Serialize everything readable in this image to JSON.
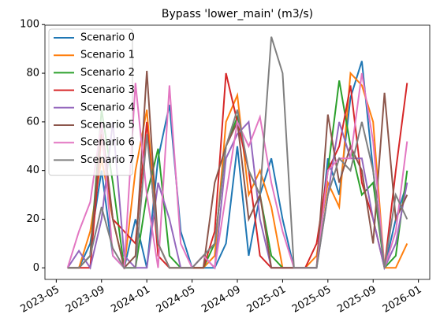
{
  "chart_data": {
    "type": "line",
    "title": "Bypass 'lower_main' (m3/s)",
    "x": [
      "2023-06",
      "2023-07",
      "2023-08",
      "2023-09",
      "2023-10",
      "2023-11",
      "2023-12",
      "2024-01",
      "2024-02",
      "2024-03",
      "2024-04",
      "2024-05",
      "2024-06",
      "2024-07",
      "2024-08",
      "2024-09",
      "2024-10",
      "2024-11",
      "2024-12",
      "2025-01",
      "2025-02",
      "2025-03",
      "2025-04",
      "2025-05",
      "2025-06",
      "2025-07",
      "2025-08",
      "2025-09",
      "2025-10",
      "2025-11",
      "2025-12"
    ],
    "xlim": [
      "2023-04",
      "2026-02"
    ],
    "xticks": [
      "2023-05",
      "2023-09",
      "2024-01",
      "2024-05",
      "2024-09",
      "2025-01",
      "2025-05",
      "2025-09",
      "2026-01"
    ],
    "ylim": [
      -4.75,
      99.75
    ],
    "yticks": [
      0,
      20,
      40,
      60,
      80,
      100
    ],
    "legend": "upper left",
    "series": [
      {
        "name": "Scenario 0",
        "color": "#1f77b4",
        "values": [
          0,
          0,
          10,
          40,
          5,
          0,
          20,
          0,
          45,
          67,
          15,
          0,
          0,
          0,
          10,
          50,
          5,
          30,
          45,
          20,
          0,
          0,
          0,
          45,
          30,
          70,
          85,
          40,
          0,
          20,
          35
        ]
      },
      {
        "name": "Scenario 1",
        "color": "#ff7f0e",
        "values": [
          0,
          0,
          15,
          45,
          20,
          0,
          40,
          65,
          10,
          0,
          0,
          0,
          0,
          5,
          60,
          71,
          30,
          40,
          25,
          0,
          0,
          0,
          5,
          35,
          25,
          80,
          75,
          60,
          0,
          0,
          10
        ]
      },
      {
        "name": "Scenario 2",
        "color": "#2ca02c",
        "values": [
          0,
          0,
          5,
          65,
          35,
          0,
          0,
          30,
          49,
          5,
          0,
          0,
          0,
          10,
          50,
          62,
          40,
          30,
          5,
          0,
          0,
          0,
          0,
          40,
          77,
          50,
          30,
          35,
          0,
          5,
          40
        ]
      },
      {
        "name": "Scenario 3",
        "color": "#d62728",
        "values": [
          0,
          0,
          0,
          55,
          20,
          15,
          10,
          60,
          5,
          0,
          0,
          0,
          0,
          15,
          80,
          60,
          40,
          5,
          0,
          0,
          0,
          0,
          10,
          40,
          50,
          75,
          35,
          20,
          0,
          40,
          76
        ]
      },
      {
        "name": "Scenario 4",
        "color": "#9467bd",
        "values": [
          0,
          7,
          0,
          20,
          60,
          5,
          0,
          0,
          35,
          20,
          0,
          0,
          5,
          0,
          45,
          55,
          60,
          20,
          0,
          0,
          0,
          0,
          0,
          30,
          60,
          45,
          45,
          20,
          0,
          10,
          35
        ]
      },
      {
        "name": "Scenario 5",
        "color": "#8c564b",
        "values": [
          0,
          0,
          5,
          60,
          20,
          0,
          5,
          81,
          10,
          0,
          0,
          0,
          0,
          35,
          50,
          60,
          20,
          30,
          0,
          0,
          0,
          0,
          0,
          63,
          35,
          50,
          40,
          10,
          72,
          20,
          30
        ]
      },
      {
        "name": "Scenario 6",
        "color": "#e377c2",
        "values": [
          0,
          15,
          27,
          60,
          5,
          0,
          76,
          30,
          0,
          75,
          10,
          0,
          5,
          0,
          30,
          60,
          50,
          62,
          35,
          15,
          0,
          0,
          0,
          40,
          45,
          45,
          80,
          52,
          0,
          15,
          52
        ]
      },
      {
        "name": "Scenario 7",
        "color": "#7f7f7f",
        "values": [
          0,
          0,
          5,
          25,
          8,
          0,
          0,
          55,
          10,
          0,
          0,
          0,
          5,
          10,
          50,
          65,
          40,
          30,
          95,
          80,
          0,
          0,
          0,
          30,
          45,
          40,
          60,
          40,
          0,
          30,
          20
        ]
      }
    ]
  }
}
